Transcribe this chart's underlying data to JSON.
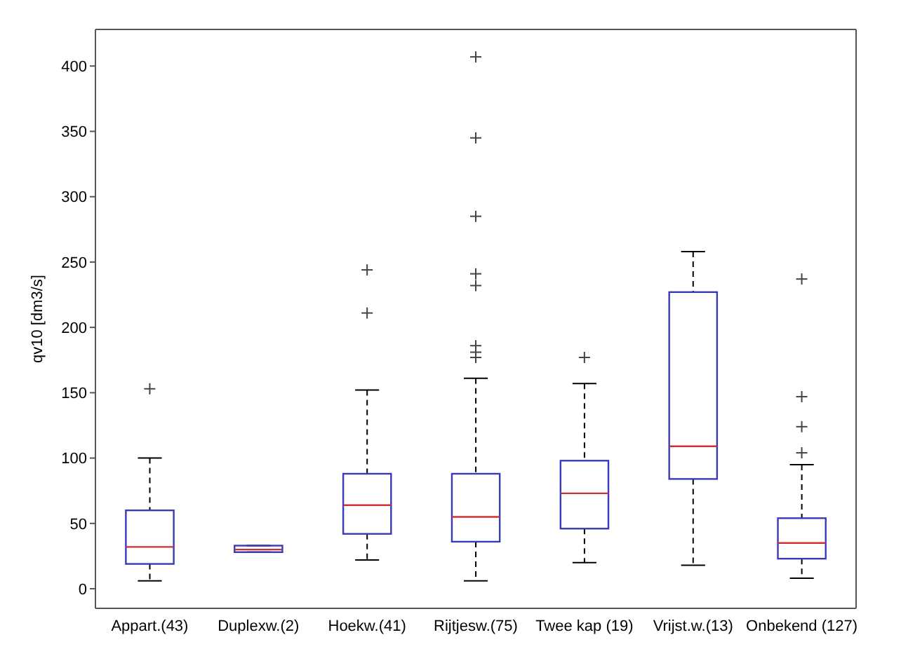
{
  "chart_data": {
    "type": "box",
    "ylabel": "qv10 [dm3/s]",
    "categories": [
      "Appart.(43)",
      "Duplexw.(2)",
      "Hoekw.(41)",
      "Rijtjesw.(75)",
      "Twee kap (19)",
      "Vrijst.w.(13)",
      "Onbekend (127)"
    ],
    "boxes": [
      {
        "low": 6,
        "q1": 19,
        "median": 32,
        "q3": 60,
        "high": 100,
        "outliers": [
          153
        ]
      },
      {
        "low": 28,
        "q1": 28,
        "median": 30,
        "q3": 33,
        "high": 33
      },
      {
        "low": 22,
        "q1": 42,
        "median": 64,
        "q3": 88,
        "high": 152,
        "outliers": [
          211,
          244
        ]
      },
      {
        "low": 6,
        "q1": 36,
        "median": 55,
        "q3": 88,
        "high": 161,
        "outliers": [
          177,
          181,
          186,
          232,
          241,
          285,
          345,
          407
        ]
      },
      {
        "low": 20,
        "q1": 46,
        "median": 73,
        "q3": 98,
        "high": 157,
        "outliers": [
          177
        ]
      },
      {
        "low": 18,
        "q1": 84,
        "median": 109,
        "q3": 227,
        "high": 258
      },
      {
        "low": 8,
        "q1": 23,
        "median": 35,
        "q3": 54,
        "high": 95,
        "outliers": [
          104,
          124,
          147,
          237
        ]
      }
    ],
    "color": "#3a3ab8",
    "marker": "cross",
    "ylim": [
      -15,
      428
    ],
    "yticks": [
      0,
      50,
      100,
      150,
      200,
      250,
      300,
      350,
      400
    ]
  }
}
